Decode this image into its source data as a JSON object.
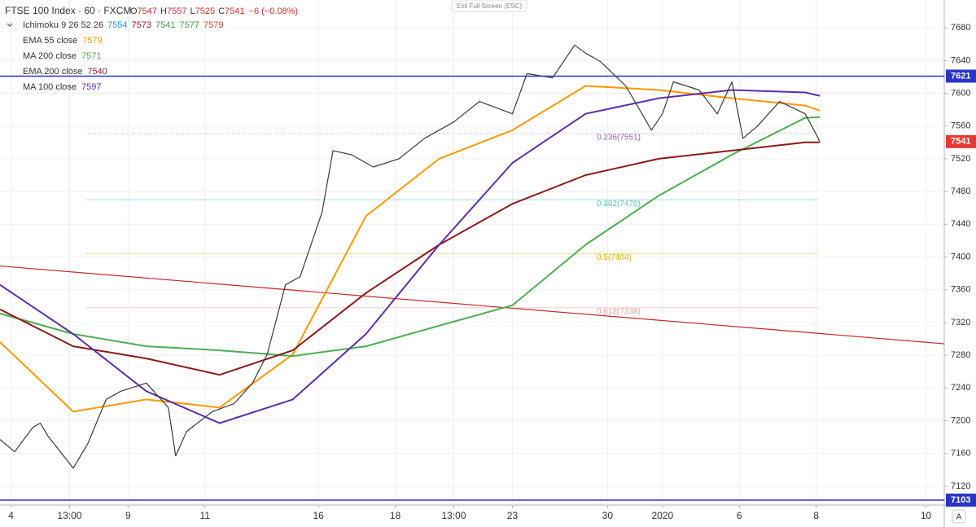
{
  "chart_data": {
    "type": "line",
    "title": "FTSE 100 Index · 60 · FXCM",
    "ohlc": [
      {
        "label": "O",
        "value": 7547
      },
      {
        "label": "H",
        "value": 7557
      },
      {
        "label": "L",
        "value": 7525
      },
      {
        "label": "C",
        "value": 7541
      }
    ],
    "change": "−6 (−0.08%)",
    "exit_button": "Exit Full Screen (ESC)",
    "ichimoku": {
      "label": "Ichimoku 9 26 52 26",
      "values": [
        7554,
        7573,
        7541,
        7577,
        7579
      ],
      "colors": [
        "#2196f3",
        "#991515",
        "#43a047",
        "#43a047",
        "#e53935"
      ]
    },
    "xlim": [
      0,
      258
    ],
    "xticks": [
      {
        "value": 3,
        "label": "4"
      },
      {
        "value": 19,
        "label": "13:00"
      },
      {
        "value": 35,
        "label": "9"
      },
      {
        "value": 56,
        "label": "11"
      },
      {
        "value": 87,
        "label": "16"
      },
      {
        "value": 108,
        "label": "18"
      },
      {
        "value": 124,
        "label": "13:00"
      },
      {
        "value": 140,
        "label": "23"
      },
      {
        "value": 166,
        "label": "30"
      },
      {
        "value": 181,
        "label": "2020"
      },
      {
        "value": 202,
        "label": "6"
      },
      {
        "value": 223,
        "label": "8"
      },
      {
        "value": 253,
        "label": "10"
      }
    ],
    "ylim": [
      7097,
      7714
    ],
    "yticks": [
      7120,
      7160,
      7200,
      7240,
      7280,
      7320,
      7360,
      7400,
      7440,
      7480,
      7520,
      7560,
      7600,
      7640,
      7680
    ],
    "grid": true,
    "price": {
      "color": "#3a3a3a",
      "x": [
        0,
        4,
        9,
        11,
        13,
        20,
        24,
        29,
        33,
        40,
        46,
        48,
        51,
        58,
        64,
        69,
        73,
        78,
        82,
        88,
        91,
        96,
        102,
        109,
        116,
        124,
        131,
        140,
        144,
        151,
        157,
        160,
        164,
        171,
        178,
        181,
        184,
        191,
        196,
        200,
        203,
        207,
        213,
        220,
        223,
        224
      ],
      "values": [
        7177,
        7162,
        7192,
        7197,
        7182,
        7142,
        7172,
        7226,
        7236,
        7246,
        7216,
        7157,
        7187,
        7211,
        7221,
        7246,
        7281,
        7366,
        7376,
        7455,
        7530,
        7525,
        7510,
        7520,
        7545,
        7565,
        7590,
        7575,
        7624,
        7619,
        7659,
        7649,
        7639,
        7609,
        7555,
        7575,
        7614,
        7604,
        7575,
        7614,
        7545,
        7560,
        7590,
        7575,
        7550,
        7541
      ]
    },
    "series": [
      {
        "name": "EMA 55 close",
        "legend_value": 7579,
        "color": "#ff9800",
        "x": [
          0,
          20,
          40,
          60,
          80,
          100,
          120,
          140,
          160,
          180,
          200,
          220,
          224
        ],
        "values": [
          7296,
          7211,
          7226,
          7216,
          7281,
          7450,
          7520,
          7555,
          7609,
          7604,
          7594,
          7585,
          7579
        ]
      },
      {
        "name": "MA 200 close",
        "legend_value": 7571,
        "color": "#4caf50",
        "x": [
          0,
          20,
          40,
          60,
          80,
          100,
          120,
          140,
          160,
          180,
          200,
          220,
          224
        ],
        "values": [
          7331,
          7306,
          7291,
          7286,
          7279,
          7291,
          7316,
          7341,
          7415,
          7475,
          7525,
          7570,
          7571
        ]
      },
      {
        "name": "EMA 200 close",
        "legend_value": 7540,
        "color": "#8b1a1a",
        "x": [
          0,
          20,
          40,
          60,
          80,
          100,
          120,
          140,
          160,
          180,
          200,
          220,
          224
        ],
        "values": [
          7336,
          7291,
          7276,
          7256,
          7286,
          7356,
          7415,
          7465,
          7500,
          7520,
          7530,
          7540,
          7540
        ]
      },
      {
        "name": "MA 100 close",
        "legend_value": 7597,
        "color": "#5b2fa8",
        "x": [
          0,
          20,
          40,
          60,
          80,
          100,
          120,
          140,
          160,
          180,
          200,
          220,
          224
        ],
        "values": [
          7366,
          7306,
          7236,
          7197,
          7226,
          7306,
          7415,
          7515,
          7575,
          7594,
          7604,
          7601,
          7597
        ]
      }
    ],
    "trendline": {
      "color": "#c62828",
      "x": [
        0,
        258
      ],
      "values": [
        7389,
        7294
      ]
    },
    "fib_levels": [
      {
        "label": "0.236(7551)",
        "value": 7551,
        "color": "#9c5fc4"
      },
      {
        "label": "0.382(7470)",
        "value": 7470,
        "color": "#5bc4d8"
      },
      {
        "label": "0.5(7404)",
        "value": 7404,
        "color": "#e0b800"
      },
      {
        "label": "0.618(7338)",
        "value": 7338,
        "color": "#f2a0a0"
      }
    ],
    "hlines": [
      {
        "value": 7621,
        "color": "#2a35c8"
      },
      {
        "value": 7103,
        "color": "#2a35c8"
      }
    ],
    "last_price": {
      "value": 7541,
      "color": "#e53935"
    }
  }
}
